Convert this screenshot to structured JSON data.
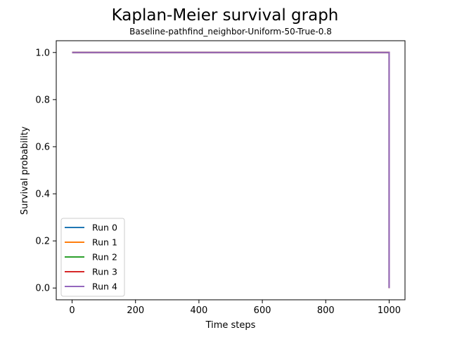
{
  "chart_data": {
    "type": "line",
    "title": "Kaplan-Meier survival graph",
    "subtitle": "Baseline-pathfind_neighbor-Uniform-50-True-0.8",
    "xlabel": "Time steps",
    "ylabel": "Survival probability",
    "xlim": [
      -50,
      1050
    ],
    "ylim": [
      -0.05,
      1.05
    ],
    "xticks": [
      0,
      200,
      400,
      600,
      800,
      1000
    ],
    "yticks": [
      0.0,
      0.2,
      0.4,
      0.6,
      0.8,
      1.0
    ],
    "xtick_labels": [
      "0",
      "200",
      "400",
      "600",
      "800",
      "1000"
    ],
    "ytick_labels": [
      "0.0",
      "0.2",
      "0.4",
      "0.6",
      "0.8",
      "1.0"
    ],
    "grid": false,
    "legend_position": "lower-left",
    "series": [
      {
        "name": "Run 0",
        "color": "#1f77b4",
        "step": "post",
        "x": [
          0,
          1000,
          1000
        ],
        "y": [
          1.0,
          1.0,
          0.0
        ]
      },
      {
        "name": "Run 1",
        "color": "#ff7f0e",
        "step": "post",
        "x": [
          0,
          1000,
          1000
        ],
        "y": [
          1.0,
          1.0,
          0.0
        ]
      },
      {
        "name": "Run 2",
        "color": "#2ca02c",
        "step": "post",
        "x": [
          0,
          1000,
          1000
        ],
        "y": [
          1.0,
          1.0,
          0.0
        ]
      },
      {
        "name": "Run 3",
        "color": "#d62728",
        "step": "post",
        "x": [
          0,
          1000,
          1000
        ],
        "y": [
          1.0,
          1.0,
          0.0
        ]
      },
      {
        "name": "Run 4",
        "color": "#9467bd",
        "step": "post",
        "x": [
          0,
          1000,
          1000
        ],
        "y": [
          1.0,
          1.0,
          0.0
        ]
      }
    ]
  }
}
